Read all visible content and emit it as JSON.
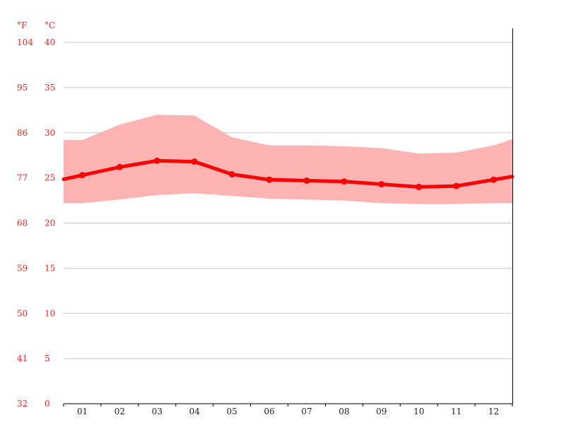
{
  "chart_data": {
    "type": "line",
    "title": "",
    "units": {
      "fahrenheit": "°F",
      "celsius": "°C"
    },
    "categories": [
      "01",
      "02",
      "03",
      "04",
      "05",
      "06",
      "07",
      "08",
      "09",
      "10",
      "11",
      "12"
    ],
    "y_ticks_celsius": [
      "0",
      "5",
      "10",
      "15",
      "20",
      "25",
      "30",
      "35",
      "40"
    ],
    "y_ticks_fahrenheit": [
      "32",
      "41",
      "50",
      "59",
      "68",
      "77",
      "86",
      "95",
      "104"
    ],
    "ylim": [
      0,
      40
    ],
    "grid": true,
    "series": [
      {
        "role": "mean",
        "values": [
          25.3,
          26.2,
          26.9,
          26.8,
          25.4,
          24.8,
          24.7,
          24.6,
          24.3,
          24.0,
          24.1,
          24.8
        ]
      }
    ],
    "range_band": {
      "max": [
        29.2,
        30.9,
        32.0,
        31.9,
        29.5,
        28.6,
        28.6,
        28.5,
        28.3,
        27.7,
        27.8,
        28.6,
        29.3
      ],
      "min": [
        22.2,
        22.6,
        23.1,
        23.3,
        23.0,
        22.7,
        22.6,
        22.5,
        22.2,
        22.1,
        22.1,
        22.2,
        22.2
      ],
      "max_edges": [
        29.2,
        29.3
      ],
      "min_edges": [
        22.2,
        22.2
      ]
    },
    "colors": {
      "line": "#ff0000",
      "band": "#ffb3b3",
      "tick_text": "#ee2222"
    }
  }
}
